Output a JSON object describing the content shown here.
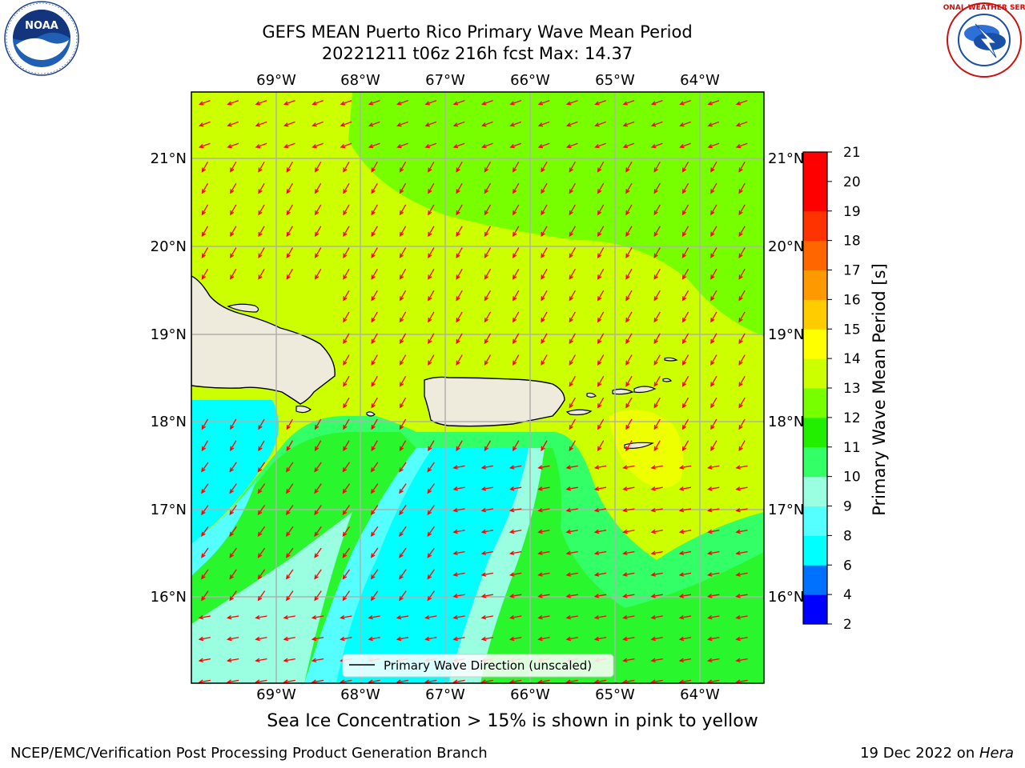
{
  "title": {
    "line1": "GEFS MEAN Puerto Rico Primary Wave Mean Period",
    "line2": "20221211 t06z 216h fcst   Max: 14.37"
  },
  "map": {
    "lon_ticks": [
      "69°W",
      "68°W",
      "67°W",
      "66°W",
      "65°W",
      "64°W"
    ],
    "lat_ticks": [
      "21°N",
      "20°N",
      "19°N",
      "18°N",
      "17°N",
      "16°N"
    ],
    "legend_label": "Primary Wave Direction (unscaled)",
    "arrow_color": "#ff0000",
    "land_color": "#efebdc"
  },
  "colorbar": {
    "label": "Primary Wave Mean Period [s]",
    "ticks": [
      "2",
      "4",
      "6",
      "8",
      "9",
      "10",
      "11",
      "12",
      "13",
      "14",
      "15",
      "16",
      "17",
      "18",
      "19",
      "20",
      "21"
    ],
    "colors": [
      "#0000ff",
      "#0070ff",
      "#00ffff",
      "#55ffff",
      "#99ffe0",
      "#33ff66",
      "#22ee00",
      "#77ff00",
      "#ccff00",
      "#ffff00",
      "#ffcc00",
      "#ff9900",
      "#ff6600",
      "#ff3300",
      "#ff0000"
    ]
  },
  "note": "Sea Ice Concentration > 15% is shown in pink to yellow",
  "footer": {
    "left": "NCEP/EMC/Verification Post Processing Product Generation Branch",
    "right_prefix": "19 Dec 2022 on ",
    "right_machine": "Hera"
  },
  "logos": {
    "noaa_text": "NOAA",
    "nws_text": "NATIONAL WEATHER SERVICE"
  }
}
